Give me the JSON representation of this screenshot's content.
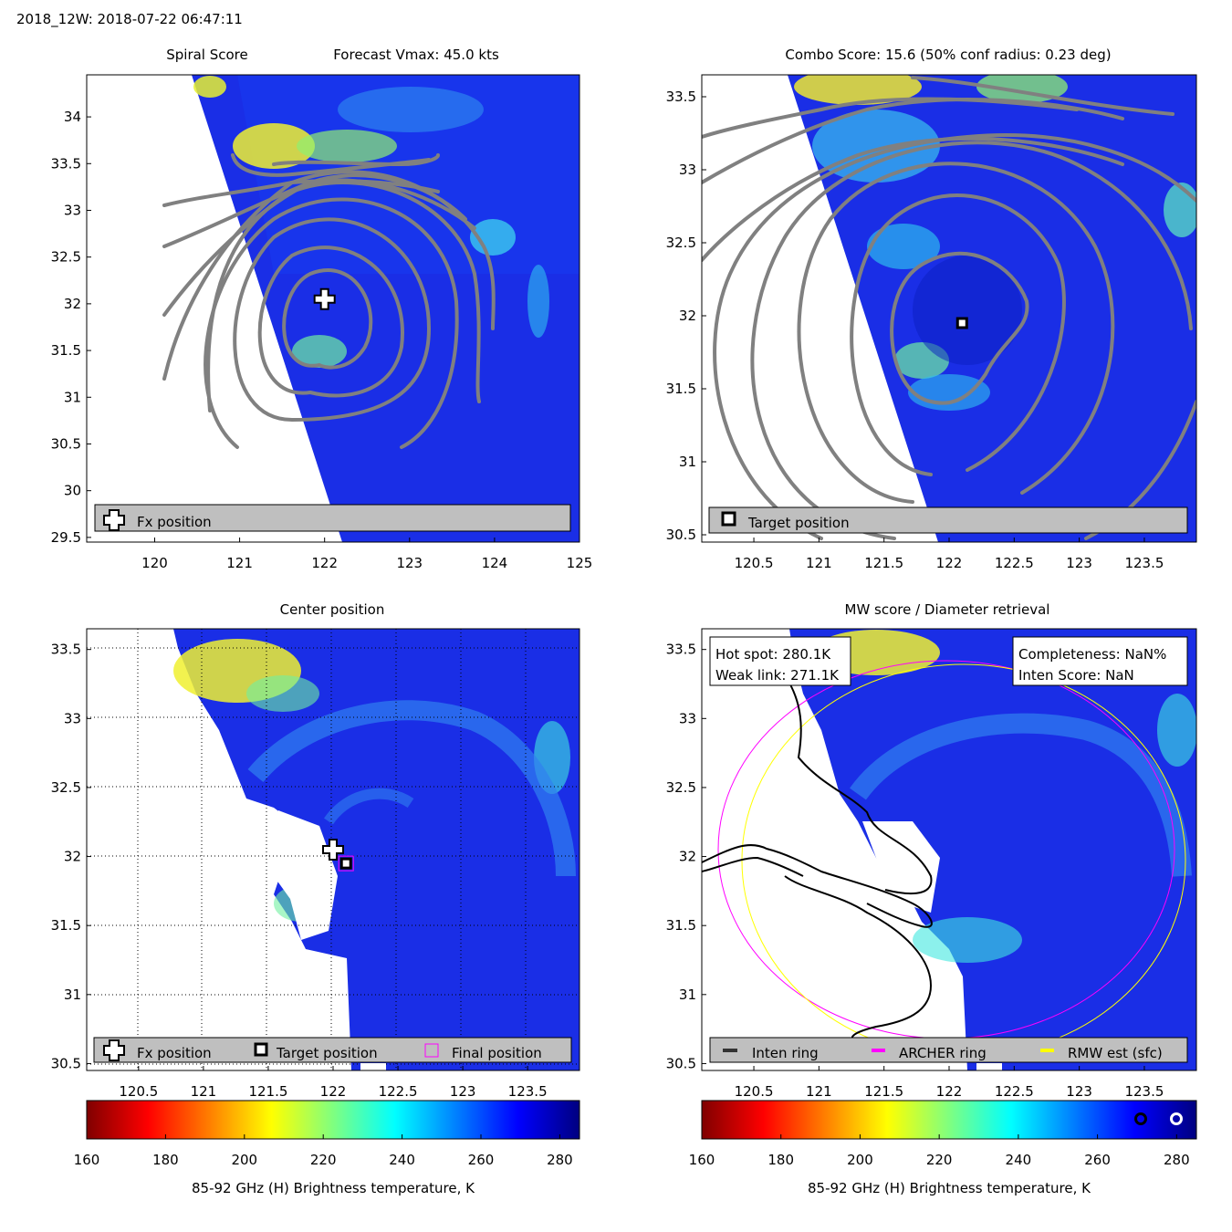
{
  "header": {
    "title": "2018_12W: 2018-07-22 06:47:11"
  },
  "colors": {
    "contour": "#808080",
    "frame": "#000000",
    "legend_bg": "#bfbfbf",
    "archer_ring": "#ff00ff",
    "rmw_ring": "#ffff00",
    "inten_ring": "#333333",
    "colormap": "jet"
  },
  "colorbar": {
    "min": 160,
    "max": 285,
    "ticks": [
      160,
      180,
      200,
      220,
      240,
      260,
      280
    ],
    "label": "85-92 GHz (H) Brightness temperature, K"
  },
  "chart_data": [
    {
      "type": "heatmap",
      "panel": "spiral",
      "title_left": "Spiral Score",
      "title_right": "Forecast Vmax: 45.0 kts",
      "xlim": [
        119.2,
        125.0
      ],
      "ylim": [
        29.45,
        34.45
      ],
      "xticks": [
        120,
        121,
        122,
        123,
        124,
        125
      ],
      "yticks": [
        29.5,
        30,
        30.5,
        31,
        31.5,
        32,
        32.5,
        33,
        33.5,
        34
      ],
      "markers": [
        {
          "kind": "fx-plus",
          "lon": 122.0,
          "lat": 32.05
        }
      ],
      "legend": [
        {
          "icon": "fx-plus",
          "label": "Fx position"
        }
      ],
      "grid": false
    },
    {
      "type": "heatmap",
      "panel": "combo",
      "title": "Combo Score: 15.6  (50% conf radius: 0.23 deg)",
      "xlim": [
        120.1,
        123.9
      ],
      "ylim": [
        30.45,
        33.65
      ],
      "xticks": [
        120.5,
        121,
        121.5,
        122,
        122.5,
        123,
        123.5
      ],
      "yticks": [
        30.5,
        31,
        31.5,
        32,
        32.5,
        33,
        33.5
      ],
      "markers": [
        {
          "kind": "target-square",
          "lon": 122.1,
          "lat": 31.95
        }
      ],
      "legend": [
        {
          "icon": "target-square",
          "label": "Target position"
        }
      ],
      "grid": false
    },
    {
      "type": "heatmap",
      "panel": "center",
      "title": "Center position",
      "xlim": [
        120.1,
        123.9
      ],
      "ylim": [
        30.45,
        33.65
      ],
      "xticks": [
        120.5,
        121,
        121.5,
        122,
        122.5,
        123,
        123.5
      ],
      "yticks": [
        30.5,
        31,
        31.5,
        32,
        32.5,
        33,
        33.5
      ],
      "markers": [
        {
          "kind": "fx-plus",
          "lon": 122.0,
          "lat": 32.05
        },
        {
          "kind": "target-square",
          "lon": 122.1,
          "lat": 31.95
        },
        {
          "kind": "final-square",
          "lon": 122.1,
          "lat": 31.95
        }
      ],
      "legend": [
        {
          "icon": "fx-plus",
          "label": "Fx position"
        },
        {
          "icon": "target-square",
          "label": "Target position"
        },
        {
          "icon": "final-square",
          "label": "Final position"
        }
      ],
      "grid": true
    },
    {
      "type": "heatmap",
      "panel": "mw",
      "title": "MW score / Diameter retrieval",
      "xlim": [
        120.1,
        123.9
      ],
      "ylim": [
        30.45,
        33.65
      ],
      "xticks": [
        120.5,
        121,
        121.5,
        122,
        122.5,
        123,
        123.5
      ],
      "yticks": [
        30.5,
        31,
        31.5,
        32,
        32.5,
        33,
        33.5
      ],
      "info_left": [
        "Hot spot: 280.1K",
        "Weak link: 271.1K"
      ],
      "info_right": [
        "Completeness: NaN%",
        "Inten Score: NaN"
      ],
      "legend": [
        {
          "icon": "inten-ring",
          "label": "Inten ring"
        },
        {
          "icon": "archer-ring",
          "label": "ARCHER ring"
        },
        {
          "icon": "rmw-ring",
          "label": "RMW est (sfc)"
        }
      ],
      "grid": false
    }
  ]
}
